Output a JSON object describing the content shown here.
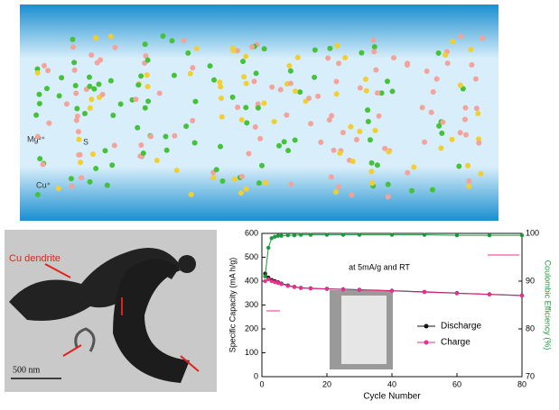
{
  "illustration": {
    "labels": [
      "Mg²⁺",
      "S",
      "Cu⁺"
    ]
  },
  "micrograph": {
    "annotation": "Cu dendrite",
    "scale_bar": "500 nm"
  },
  "chart_data": {
    "type": "line",
    "annotation": "at 5mA/g and RT",
    "x_label": "Cycle Number",
    "y_label": "Specific Capacity (mA h/g)",
    "y2_label": "Coulombic Efficiency (%)",
    "x": [
      1,
      2,
      3,
      4,
      5,
      6,
      8,
      10,
      12,
      15,
      20,
      25,
      30,
      40,
      50,
      60,
      70,
      80
    ],
    "series": [
      {
        "name": "Discharge",
        "color": "#111111",
        "values": [
          432,
          415,
          405,
          400,
          395,
          390,
          382,
          376,
          372,
          370,
          368,
          366,
          364,
          360,
          355,
          350,
          345,
          340
        ]
      },
      {
        "name": "Charge",
        "color": "#e8308c",
        "values": [
          400,
          408,
          400,
          396,
          392,
          388,
          380,
          375,
          371,
          369,
          367,
          365,
          363,
          359,
          354,
          349,
          344,
          339
        ]
      },
      {
        "color": "#1a9a3a",
        "axis": "y2",
        "values": [
          91,
          97,
          99,
          99.3,
          99.5,
          99.5,
          99.6,
          99.6,
          99.7,
          99.7,
          99.7,
          99.7,
          99.7,
          99.7,
          99.7,
          99.6,
          99.6,
          99.6
        ]
      }
    ],
    "xlim": [
      0,
      80
    ],
    "xticks": [
      0,
      20,
      40,
      60,
      80
    ],
    "ylim": [
      0,
      600
    ],
    "yticks": [
      0,
      100,
      200,
      300,
      400,
      500,
      600
    ],
    "y2lim": [
      70,
      100
    ],
    "y2ticks": [
      70,
      80,
      90,
      100
    ],
    "y2_color": "#1a9a3a"
  }
}
